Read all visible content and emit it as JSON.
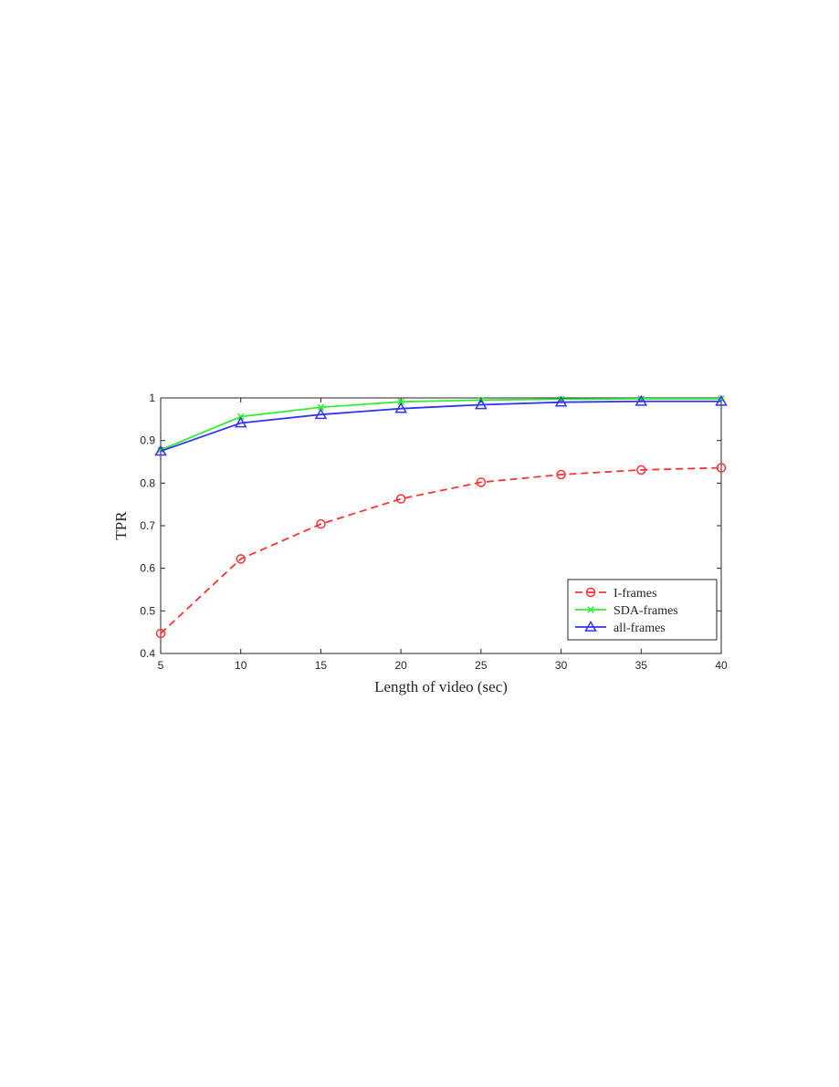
{
  "chart_data": {
    "type": "line",
    "xlabel": "Length of video (sec)",
    "ylabel": "TPR",
    "x": [
      5,
      10,
      15,
      20,
      25,
      30,
      35,
      40
    ],
    "xlim": [
      5,
      40
    ],
    "ylim": [
      0.4,
      1
    ],
    "xticks": [
      "5",
      "10",
      "15",
      "20",
      "25",
      "30",
      "35",
      "40"
    ],
    "yticks": [
      "0.4",
      "0.5",
      "0.6",
      "0.7",
      "0.8",
      "0.9",
      "1"
    ],
    "grid": false,
    "legend_position": "bottom-right",
    "series": [
      {
        "name": "I-frames",
        "values": [
          0.447,
          0.622,
          0.704,
          0.763,
          0.802,
          0.82,
          0.831,
          0.836
        ],
        "color": "#ff3333",
        "line_style": "dashed",
        "marker": "circle"
      },
      {
        "name": "SDA-frames",
        "values": [
          0.878,
          0.956,
          0.978,
          0.991,
          0.995,
          0.997,
          0.998,
          0.998
        ],
        "color": "#33ee33",
        "line_style": "solid",
        "marker": "x"
      },
      {
        "name": "all-frames",
        "values": [
          0.875,
          0.941,
          0.961,
          0.975,
          0.984,
          0.99,
          0.992,
          0.992
        ],
        "color": "#3333ff",
        "line_style": "solid",
        "marker": "triangle"
      }
    ]
  }
}
